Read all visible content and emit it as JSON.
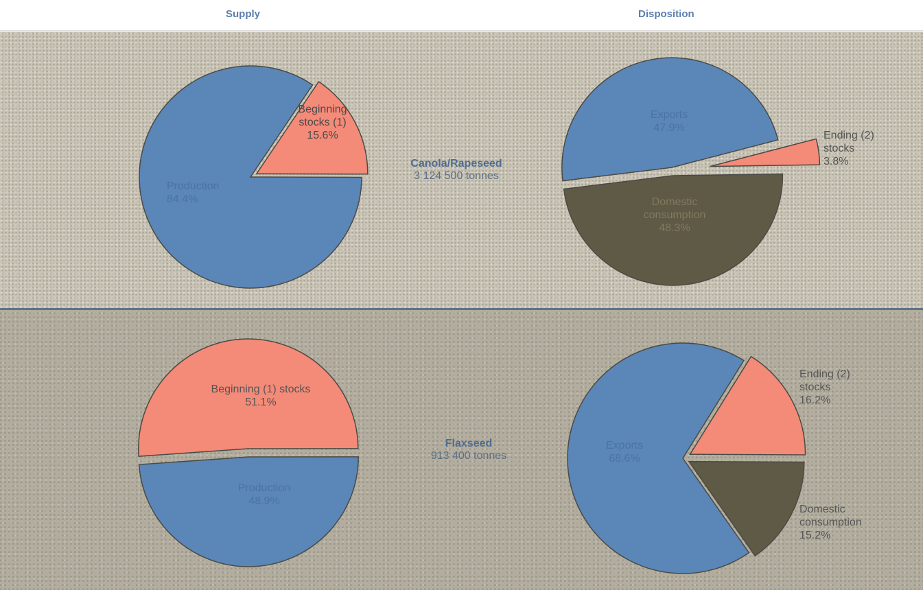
{
  "header": {
    "supply": "Supply",
    "disposition": "Disposition"
  },
  "crops": [
    {
      "name": "Canola/Rapeseed",
      "total": "3 124 500 tonnes"
    },
    {
      "name": "Flaxseed",
      "total": "913 400 tonnes"
    }
  ],
  "chart_data": [
    {
      "type": "pie",
      "categories": [
        "Beginning stocks (1)",
        "Production"
      ],
      "values": [
        15.6,
        84.4
      ],
      "value_labels": [
        "15.6%",
        "84.4%"
      ],
      "colors": [
        "#f48a78",
        "#5b86b8"
      ]
    },
    {
      "type": "pie",
      "categories": [
        "Exports",
        "Ending (2) stocks",
        "Domestic consumption"
      ],
      "values": [
        47.9,
        3.8,
        48.3
      ],
      "value_labels": [
        "47.9%",
        "3.8%",
        "48.3%"
      ],
      "colors": [
        "#5b86b8",
        "#f48a78",
        "#5e5a45"
      ]
    },
    {
      "type": "pie",
      "categories": [
        "Beginning (1) stocks",
        "Production"
      ],
      "values": [
        51.1,
        48.9
      ],
      "value_labels": [
        "51.1%",
        "48.9%"
      ],
      "colors": [
        "#f48a78",
        "#5b86b8"
      ]
    },
    {
      "type": "pie",
      "categories": [
        "Exports",
        "Ending (2) stocks",
        "Domestic consumption"
      ],
      "values": [
        68.6,
        16.2,
        15.2
      ],
      "value_labels": [
        "68.6%",
        "16.2%",
        "15.2%"
      ],
      "colors": [
        "#5b86b8",
        "#f48a78",
        "#5e5a45"
      ]
    }
  ]
}
